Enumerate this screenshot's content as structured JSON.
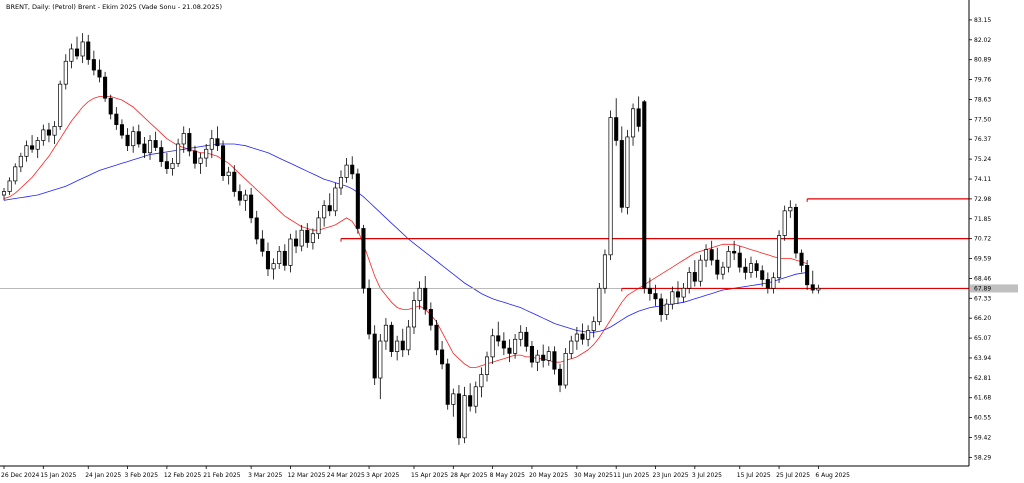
{
  "chart_data": {
    "type": "candlestick",
    "title": "BRENT, Daily:  (Petrol) Brent - Ekim 2025 (Vade Sonu - 21.08.2025)",
    "x_tick_labels": [
      "26 Dec 2024",
      "15 Jan 2025",
      "24 Jan 2025",
      "3 Feb 2025",
      "12 Feb 2025",
      "21 Feb 2025",
      "3 Mar 2025",
      "12 Mar 2025",
      "24 Mar 2025",
      "3 Apr 2025",
      "15 Apr 2025",
      "28 Apr 2025",
      "8 May 2025",
      "20 May 2025",
      "30 May 2025",
      "11 Jun 2025",
      "23 Jun 2025",
      "3 Jul 2025",
      "15 Jul 2025",
      "25 Jul 2025",
      "6 Aug 2025"
    ],
    "y_tick_labels": [
      "83.15",
      "82.02",
      "80.89",
      "79.76",
      "78.63",
      "77.50",
      "76.37",
      "75.24",
      "74.11",
      "72.98",
      "71.85",
      "70.72",
      "69.59",
      "68.46",
      "67.33",
      "66.20",
      "65.07",
      "63.94",
      "62.81",
      "61.68",
      "60.55",
      "59.42",
      "58.29"
    ],
    "ylim": [
      57.8,
      83.6
    ],
    "last_price": "67.89",
    "grid": false,
    "candles_ohlc": [
      [
        73.2,
        73.6,
        72.9,
        73.4
      ],
      [
        73.4,
        74.2,
        73.2,
        74.0
      ],
      [
        74.0,
        75.0,
        73.8,
        74.8
      ],
      [
        74.8,
        75.6,
        74.5,
        75.4
      ],
      [
        75.4,
        76.3,
        75.1,
        76.0
      ],
      [
        76.0,
        76.6,
        75.6,
        75.8
      ],
      [
        75.8,
        76.5,
        75.3,
        76.3
      ],
      [
        76.3,
        77.2,
        76.0,
        76.9
      ],
      [
        76.9,
        77.3,
        76.2,
        76.6
      ],
      [
        76.6,
        77.4,
        76.1,
        77.1
      ],
      [
        77.1,
        79.7,
        76.9,
        79.5
      ],
      [
        79.5,
        81.2,
        79.2,
        80.8
      ],
      [
        80.8,
        81.8,
        80.4,
        81.5
      ],
      [
        81.5,
        82.2,
        80.9,
        81.1
      ],
      [
        81.1,
        82.4,
        80.7,
        81.9
      ],
      [
        81.9,
        82.3,
        80.6,
        80.9
      ],
      [
        80.9,
        81.4,
        80.0,
        80.3
      ],
      [
        80.3,
        80.9,
        79.6,
        79.9
      ],
      [
        79.9,
        80.2,
        78.5,
        78.7
      ],
      [
        78.7,
        78.9,
        77.5,
        77.8
      ],
      [
        77.8,
        78.2,
        76.9,
        77.2
      ],
      [
        77.2,
        77.5,
        76.4,
        76.6
      ],
      [
        76.6,
        77.0,
        75.7,
        76.0
      ],
      [
        76.0,
        77.1,
        75.6,
        76.8
      ],
      [
        76.8,
        77.2,
        75.9,
        76.1
      ],
      [
        76.1,
        76.5,
        75.3,
        75.6
      ],
      [
        75.6,
        76.6,
        75.2,
        76.3
      ],
      [
        76.3,
        76.8,
        75.7,
        75.9
      ],
      [
        75.9,
        76.3,
        74.8,
        75.1
      ],
      [
        75.1,
        75.6,
        74.4,
        74.7
      ],
      [
        74.7,
        75.3,
        74.3,
        75.0
      ],
      [
        75.0,
        76.4,
        74.8,
        76.1
      ],
      [
        76.1,
        77.1,
        75.6,
        76.7
      ],
      [
        76.7,
        77.0,
        75.4,
        75.7
      ],
      [
        75.7,
        76.0,
        74.7,
        75.0
      ],
      [
        75.0,
        75.6,
        74.4,
        75.3
      ],
      [
        75.3,
        76.1,
        74.8,
        75.8
      ],
      [
        75.8,
        76.9,
        75.3,
        76.4
      ],
      [
        76.4,
        77.1,
        75.7,
        76.0
      ],
      [
        76.0,
        76.3,
        74.0,
        74.3
      ],
      [
        74.3,
        74.8,
        73.8,
        74.5
      ],
      [
        74.5,
        74.9,
        73.1,
        73.4
      ],
      [
        73.4,
        73.8,
        72.6,
        72.9
      ],
      [
        72.9,
        73.5,
        72.3,
        73.2
      ],
      [
        73.2,
        73.6,
        71.6,
        71.9
      ],
      [
        71.9,
        72.3,
        70.4,
        70.7
      ],
      [
        70.7,
        71.2,
        69.7,
        70.0
      ],
      [
        70.0,
        70.5,
        68.6,
        69.0
      ],
      [
        69.0,
        69.6,
        68.4,
        69.3
      ],
      [
        69.3,
        70.3,
        69.0,
        70.0
      ],
      [
        70.0,
        70.4,
        68.9,
        69.2
      ],
      [
        69.2,
        71.0,
        68.8,
        70.7
      ],
      [
        70.7,
        71.2,
        69.9,
        70.3
      ],
      [
        70.3,
        71.5,
        70.0,
        71.2
      ],
      [
        71.2,
        71.6,
        70.2,
        70.5
      ],
      [
        70.5,
        71.3,
        70.1,
        71.0
      ],
      [
        71.0,
        72.3,
        70.7,
        71.9
      ],
      [
        71.9,
        72.9,
        71.4,
        72.6
      ],
      [
        72.6,
        73.3,
        72.0,
        72.3
      ],
      [
        72.3,
        73.9,
        72.0,
        73.6
      ],
      [
        73.6,
        74.6,
        73.2,
        74.2
      ],
      [
        74.2,
        75.3,
        73.9,
        74.9
      ],
      [
        74.9,
        75.4,
        74.1,
        74.4
      ],
      [
        74.4,
        74.7,
        71.0,
        71.3
      ],
      [
        71.3,
        71.5,
        67.6,
        67.9
      ],
      [
        67.9,
        68.4,
        65.0,
        65.3
      ],
      [
        65.3,
        65.8,
        62.4,
        62.8
      ],
      [
        62.8,
        65.3,
        61.6,
        64.9
      ],
      [
        64.9,
        66.2,
        64.4,
        65.8
      ],
      [
        65.8,
        66.0,
        64.0,
        64.3
      ],
      [
        64.3,
        65.2,
        63.8,
        64.9
      ],
      [
        64.9,
        65.6,
        64.0,
        64.4
      ],
      [
        64.4,
        66.1,
        64.1,
        65.7
      ],
      [
        65.7,
        67.7,
        65.3,
        67.2
      ],
      [
        67.2,
        68.3,
        66.7,
        67.9
      ],
      [
        67.9,
        68.6,
        66.4,
        66.7
      ],
      [
        66.7,
        67.1,
        65.5,
        65.8
      ],
      [
        65.8,
        66.1,
        64.1,
        64.4
      ],
      [
        64.4,
        64.9,
        63.3,
        63.6
      ],
      [
        63.6,
        63.9,
        61.0,
        61.3
      ],
      [
        61.3,
        62.2,
        60.6,
        61.9
      ],
      [
        61.9,
        62.4,
        59.0,
        59.4
      ],
      [
        59.4,
        62.3,
        59.1,
        61.8
      ],
      [
        61.8,
        62.5,
        60.9,
        61.2
      ],
      [
        61.2,
        62.6,
        60.8,
        62.3
      ],
      [
        62.3,
        63.4,
        61.7,
        63.0
      ],
      [
        63.0,
        64.3,
        62.6,
        64.0
      ],
      [
        64.0,
        65.6,
        63.6,
        65.2
      ],
      [
        65.2,
        66.0,
        64.6,
        64.9
      ],
      [
        64.9,
        65.4,
        64.1,
        64.5
      ],
      [
        64.5,
        65.0,
        63.7,
        64.2
      ],
      [
        64.2,
        65.3,
        63.9,
        65.0
      ],
      [
        65.0,
        65.8,
        64.6,
        65.4
      ],
      [
        65.4,
        65.7,
        64.3,
        64.6
      ],
      [
        64.6,
        64.9,
        63.4,
        63.7
      ],
      [
        63.7,
        64.4,
        63.2,
        64.1
      ],
      [
        64.1,
        64.7,
        63.4,
        63.8
      ],
      [
        63.8,
        64.6,
        63.5,
        64.3
      ],
      [
        64.3,
        64.6,
        63.0,
        63.3
      ],
      [
        63.3,
        63.6,
        62.0,
        62.4
      ],
      [
        62.4,
        64.5,
        62.2,
        64.2
      ],
      [
        64.2,
        65.2,
        63.9,
        64.9
      ],
      [
        64.9,
        65.7,
        64.4,
        65.3
      ],
      [
        65.3,
        65.9,
        64.7,
        65.0
      ],
      [
        65.0,
        65.8,
        64.6,
        65.5
      ],
      [
        65.5,
        66.3,
        65.1,
        66.0
      ],
      [
        66.0,
        68.2,
        65.8,
        67.9
      ],
      [
        67.9,
        70.1,
        67.6,
        69.8
      ],
      [
        69.8,
        78.0,
        69.5,
        77.6
      ],
      [
        77.6,
        78.7,
        76.0,
        76.3
      ],
      [
        76.3,
        77.1,
        72.2,
        72.5
      ],
      [
        72.5,
        76.9,
        72.1,
        76.5
      ],
      [
        76.5,
        78.4,
        76.0,
        78.1
      ],
      [
        78.1,
        78.8,
        76.8,
        77.1
      ],
      [
        78.5,
        78.6,
        67.6,
        67.9
      ],
      [
        67.9,
        68.5,
        67.2,
        67.6
      ],
      [
        67.6,
        68.1,
        66.9,
        67.3
      ],
      [
        67.3,
        67.6,
        66.0,
        66.4
      ],
      [
        66.4,
        67.3,
        66.1,
        67.0
      ],
      [
        67.0,
        68.0,
        66.7,
        67.7
      ],
      [
        67.7,
        68.3,
        67.0,
        67.4
      ],
      [
        67.4,
        68.2,
        67.1,
        67.9
      ],
      [
        67.9,
        69.1,
        67.6,
        68.8
      ],
      [
        68.8,
        69.5,
        68.0,
        68.3
      ],
      [
        68.3,
        69.8,
        68.0,
        69.5
      ],
      [
        69.5,
        70.4,
        69.1,
        70.1
      ],
      [
        70.1,
        70.6,
        69.2,
        69.5
      ],
      [
        69.5,
        70.2,
        68.4,
        68.7
      ],
      [
        68.7,
        69.4,
        68.4,
        69.1
      ],
      [
        69.1,
        70.3,
        68.8,
        70.0
      ],
      [
        70.0,
        70.6,
        69.5,
        69.9
      ],
      [
        69.9,
        70.3,
        68.8,
        69.1
      ],
      [
        69.1,
        69.6,
        68.4,
        68.8
      ],
      [
        68.8,
        69.7,
        68.5,
        69.3
      ],
      [
        69.3,
        69.5,
        68.5,
        68.9
      ],
      [
        68.9,
        69.2,
        68.0,
        68.4
      ],
      [
        68.4,
        68.8,
        67.6,
        67.9
      ],
      [
        67.9,
        68.8,
        67.6,
        68.5
      ],
      [
        68.5,
        71.2,
        68.2,
        70.9
      ],
      [
        70.9,
        72.6,
        70.6,
        72.3
      ],
      [
        72.3,
        72.9,
        71.9,
        72.5
      ],
      [
        72.5,
        72.7,
        69.6,
        69.9
      ],
      [
        69.9,
        70.1,
        68.8,
        69.2
      ],
      [
        69.2,
        69.5,
        67.8,
        68.1
      ],
      [
        68.1,
        68.9,
        67.6,
        67.8
      ],
      [
        67.8,
        68.1,
        67.6,
        67.9
      ]
    ],
    "moving_averages": [
      {
        "color": "#ff2020",
        "values": [
          73.0,
          73.1,
          73.3,
          73.6,
          73.9,
          74.2,
          74.6,
          75.0,
          75.4,
          75.9,
          76.4,
          76.9,
          77.4,
          77.8,
          78.2,
          78.5,
          78.7,
          78.8,
          78.8,
          78.8,
          78.7,
          78.6,
          78.4,
          78.2,
          77.9,
          77.6,
          77.3,
          77.0,
          76.7,
          76.4,
          76.2,
          76.0,
          75.9,
          75.8,
          75.7,
          75.6,
          75.6,
          75.5,
          75.4,
          75.2,
          75.0,
          74.7,
          74.4,
          74.1,
          73.8,
          73.5,
          73.2,
          72.9,
          72.6,
          72.3,
          72.0,
          71.8,
          71.6,
          71.4,
          71.3,
          71.2,
          71.2,
          71.3,
          71.4,
          71.5,
          71.7,
          71.9,
          71.7,
          71.2,
          70.4,
          69.5,
          68.6,
          67.9,
          67.5,
          67.1,
          66.8,
          66.7,
          66.7,
          66.8,
          66.9,
          66.7,
          66.4,
          66.0,
          65.4,
          64.8,
          64.2,
          63.9,
          63.6,
          63.4,
          63.4,
          63.5,
          63.6,
          63.7,
          63.8,
          63.9,
          64.0,
          64.1,
          64.1,
          64.0,
          64.0,
          63.9,
          63.9,
          63.8,
          63.7,
          63.7,
          63.8,
          63.9,
          64.0,
          64.2,
          64.4,
          64.7,
          65.1,
          65.6,
          66.1,
          66.6,
          67.1,
          67.5,
          67.7,
          67.9,
          68.1,
          68.3,
          68.5,
          68.7,
          68.9,
          69.1,
          69.3,
          69.5,
          69.7,
          69.9,
          70.0,
          70.1,
          70.2,
          70.3,
          70.4,
          70.4,
          70.4,
          70.3,
          70.2,
          70.1,
          70.0,
          69.9,
          69.8,
          69.7,
          69.6,
          69.6,
          69.6,
          69.5,
          69.4,
          69.3
        ]
      },
      {
        "color": "#2020ff",
        "values": [
          72.9,
          72.95,
          73.0,
          73.05,
          73.1,
          73.15,
          73.2,
          73.3,
          73.4,
          73.5,
          73.6,
          73.7,
          73.85,
          74.0,
          74.15,
          74.3,
          74.45,
          74.6,
          74.7,
          74.8,
          74.9,
          75.0,
          75.1,
          75.2,
          75.3,
          75.4,
          75.5,
          75.55,
          75.6,
          75.65,
          75.7,
          75.75,
          75.8,
          75.85,
          75.9,
          75.95,
          76.0,
          76.05,
          76.1,
          76.1,
          76.1,
          76.1,
          76.05,
          76.0,
          75.9,
          75.8,
          75.7,
          75.6,
          75.45,
          75.3,
          75.15,
          75.0,
          74.85,
          74.7,
          74.55,
          74.4,
          74.25,
          74.1,
          74.0,
          73.9,
          73.8,
          73.7,
          73.55,
          73.35,
          73.1,
          72.8,
          72.5,
          72.2,
          71.9,
          71.6,
          71.3,
          71.0,
          70.7,
          70.45,
          70.2,
          69.95,
          69.7,
          69.45,
          69.2,
          68.95,
          68.7,
          68.45,
          68.2,
          68.0,
          67.8,
          67.6,
          67.45,
          67.3,
          67.2,
          67.1,
          67.0,
          66.9,
          66.8,
          66.65,
          66.5,
          66.35,
          66.2,
          66.05,
          65.9,
          65.8,
          65.7,
          65.6,
          65.5,
          65.45,
          65.4,
          65.4,
          65.45,
          65.55,
          65.7,
          65.9,
          66.1,
          66.3,
          66.45,
          66.6,
          66.7,
          66.8,
          66.85,
          66.9,
          66.95,
          67.0,
          67.05,
          67.1,
          67.2,
          67.3,
          67.4,
          67.5,
          67.6,
          67.7,
          67.8,
          67.85,
          67.9,
          67.95,
          68.0,
          68.05,
          68.1,
          68.15,
          68.2,
          68.3,
          68.4,
          68.5,
          68.6,
          68.7,
          68.75,
          68.8
        ]
      }
    ],
    "horizontal_lines": [
      {
        "value": 72.98,
        "color": "#e00000",
        "from_candle": 143
      },
      {
        "value": 70.72,
        "color": "#e00000",
        "from_candle": 60
      },
      {
        "value": 67.89,
        "color": "#e00000",
        "from_candle": 110
      }
    ]
  }
}
